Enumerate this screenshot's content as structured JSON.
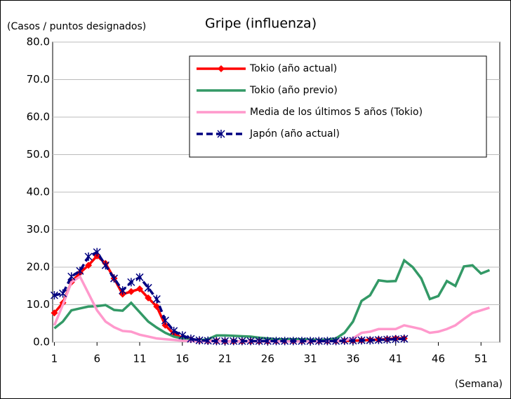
{
  "chart_data": {
    "type": "line",
    "title": "Gripe (influenza)",
    "y_label": "(Casos / puntos designados)",
    "x_label": "(Semana)",
    "x": [
      1,
      2,
      3,
      4,
      5,
      6,
      7,
      8,
      9,
      10,
      11,
      12,
      13,
      14,
      15,
      16,
      17,
      18,
      19,
      20,
      21,
      22,
      23,
      24,
      25,
      26,
      27,
      28,
      29,
      30,
      31,
      32,
      33,
      34,
      35,
      36,
      37,
      38,
      39,
      40,
      41,
      42,
      43,
      44,
      45,
      46,
      47,
      48,
      49,
      50,
      51,
      52
    ],
    "xlim": [
      0.8,
      53.2
    ],
    "xticks": [
      1,
      6,
      11,
      16,
      21,
      26,
      31,
      36,
      41,
      46,
      51
    ],
    "ylim": [
      0,
      80
    ],
    "yticks": [
      {
        "value": 0,
        "label": "0.0"
      },
      {
        "value": 10,
        "label": "10.0"
      },
      {
        "value": 20,
        "label": "20.0"
      },
      {
        "value": 30,
        "label": "30.0"
      },
      {
        "value": 40,
        "label": "40.0"
      },
      {
        "value": 50,
        "label": "50.0"
      },
      {
        "value": 60,
        "label": "60.0"
      },
      {
        "value": 70,
        "label": "70.0"
      },
      {
        "value": 80,
        "label": "80.0"
      }
    ],
    "grid": true,
    "legend": "upper right",
    "series": [
      {
        "name": "Tokio (año actual)",
        "color": "#ff0000",
        "marker": "diamond",
        "values": [
          7.8,
          10.5,
          16,
          18.5,
          20.5,
          23,
          21,
          17,
          12.8,
          13.5,
          14.2,
          11.8,
          9.5,
          4.5,
          2.2,
          1.2,
          0.7,
          0.4,
          0.3,
          0.3,
          0.2,
          0.2,
          0.2,
          0.2,
          0.2,
          0.2,
          0.3,
          0.3,
          0.3,
          0.3,
          0.3,
          0.3,
          0.3,
          0.3,
          0.4,
          0.4,
          0.5,
          0.6,
          0.7,
          0.8,
          1.0,
          1.0,
          null,
          null,
          null,
          null,
          null,
          null,
          null,
          null,
          null,
          null
        ]
      },
      {
        "name": "Tokio (año previo)",
        "color": "#339966",
        "marker": "none",
        "values": [
          3.7,
          5.5,
          8.5,
          9.0,
          9.5,
          9.6,
          9.9,
          8.6,
          8.4,
          10.5,
          8,
          5.5,
          3.9,
          2.5,
          1.5,
          1.0,
          0.6,
          0.5,
          0.8,
          1.8,
          1.8,
          1.7,
          1.6,
          1.5,
          1.2,
          1.0,
          0.8,
          0.8,
          0.8,
          0.8,
          0.7,
          0.6,
          0.7,
          1.0,
          2.5,
          5.5,
          11,
          12.5,
          16.5,
          16.2,
          16.3,
          21.8,
          20,
          17,
          11.5,
          12.3,
          16.3,
          15,
          20.2,
          20.5,
          18.3,
          19.2
        ]
      },
      {
        "name": "Media de los últimos 5 años (Tokio)",
        "color": "#ff99cc",
        "marker": "none",
        "values": [
          4.5,
          10,
          16,
          17.5,
          13,
          8.5,
          5.5,
          4,
          3,
          2.8,
          2,
          1.5,
          1,
          0.8,
          0.6,
          0.4,
          0.3,
          0.2,
          0.2,
          0.2,
          0.2,
          0.2,
          0.2,
          0.2,
          0.2,
          0.2,
          0.2,
          0.2,
          0.2,
          0.2,
          0.2,
          0.2,
          0.2,
          0.3,
          0.5,
          1,
          2.5,
          2.8,
          3.5,
          3.5,
          3.5,
          4.5,
          4,
          3.5,
          2.5,
          2.8,
          3.5,
          4.5,
          6.2,
          7.8,
          8.5,
          9.2
        ]
      },
      {
        "name": "Japón (año actual)",
        "color": "#000080",
        "marker": "star",
        "dashed": true,
        "values": [
          12.5,
          13,
          17.5,
          19,
          22.8,
          24,
          20.5,
          17,
          13.8,
          16,
          17.3,
          14.5,
          11.5,
          5.8,
          3,
          1.8,
          0.9,
          0.5,
          0.4,
          0.3,
          0.3,
          0.3,
          0.3,
          0.3,
          0.3,
          0.3,
          0.3,
          0.3,
          0.3,
          0.3,
          0.3,
          0.3,
          0.3,
          0.3,
          0.4,
          0.4,
          0.5,
          0.5,
          0.6,
          0.7,
          0.8,
          0.9,
          null,
          null,
          null,
          null,
          null,
          null,
          null,
          null,
          null,
          null
        ]
      }
    ]
  }
}
